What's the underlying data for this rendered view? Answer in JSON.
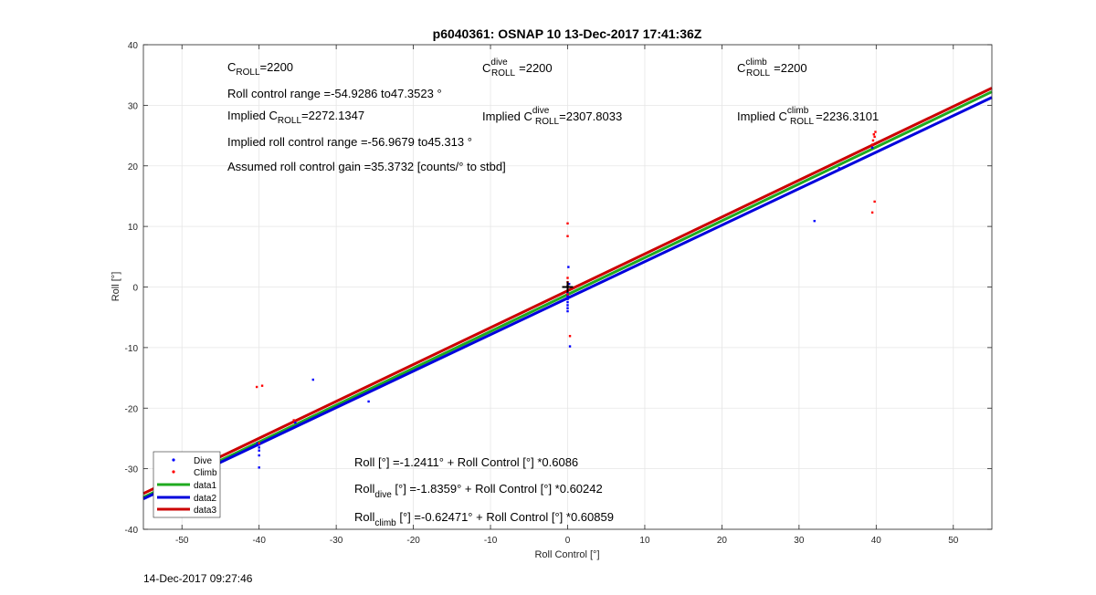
{
  "chart_data": {
    "type": "scatter",
    "title": "p6040361: OSNAP 10 13-Dec-2017 17:41:36Z",
    "xlabel": "Roll Control [°]",
    "ylabel": "Roll [°]",
    "xlim": [
      -55,
      55
    ],
    "ylim": [
      -40,
      40
    ],
    "xticks": [
      -50,
      -40,
      -30,
      -20,
      -10,
      0,
      10,
      20,
      30,
      40,
      50
    ],
    "yticks": [
      -40,
      -30,
      -20,
      -10,
      0,
      10,
      20,
      30,
      40
    ],
    "grid": true,
    "legend_position": "bottom-left",
    "legend": [
      "Dive",
      "Climb",
      "data1",
      "data2",
      "data3"
    ],
    "series": [
      {
        "name": "Dive",
        "kind": "points",
        "color": "#0000ff",
        "points": [
          [
            -51.5,
            -28.6
          ],
          [
            -40,
            -26
          ],
          [
            -40,
            -26.5
          ],
          [
            -40,
            -27
          ],
          [
            -40,
            -27.8
          ],
          [
            -40,
            -29.8
          ],
          [
            -40.2,
            -25.8
          ],
          [
            -35.3,
            -22.4
          ],
          [
            -33,
            -15.3
          ],
          [
            -25.8,
            -18.9
          ],
          [
            0,
            -1
          ],
          [
            0,
            -1.5
          ],
          [
            0,
            -2
          ],
          [
            0,
            -2.5
          ],
          [
            0,
            -3
          ],
          [
            0,
            -3.5
          ],
          [
            0,
            -4
          ],
          [
            0.1,
            3.3
          ],
          [
            0.2,
            0.5
          ],
          [
            0.3,
            -9.8
          ],
          [
            32,
            10.9
          ],
          [
            35.2,
            19.6
          ],
          [
            39.5,
            23
          ]
        ]
      },
      {
        "name": "Climb",
        "kind": "points",
        "color": "#ff0000",
        "points": [
          [
            -51.7,
            -30.6
          ],
          [
            -40.3,
            -16.5
          ],
          [
            -39.6,
            -16.3
          ],
          [
            -40,
            -25.8
          ],
          [
            -35.5,
            -22
          ],
          [
            0,
            10.5
          ],
          [
            0,
            8.4
          ],
          [
            0,
            1.5
          ],
          [
            0,
            0.8
          ],
          [
            0,
            0.2
          ],
          [
            0,
            -0.6
          ],
          [
            0,
            -1.2
          ],
          [
            0.3,
            -8.1
          ],
          [
            39.5,
            12.3
          ],
          [
            39.8,
            14.1
          ],
          [
            39.5,
            23.5
          ],
          [
            39.6,
            24.2
          ],
          [
            39.8,
            24.8
          ],
          [
            39.7,
            25.2
          ],
          [
            39.9,
            25.6
          ]
        ]
      },
      {
        "name": "data1",
        "kind": "line",
        "color": "#1faa1f",
        "x": [
          -55,
          55
        ],
        "y": [
          -34.715,
          32.231
        ]
      },
      {
        "name": "data2",
        "kind": "line",
        "color": "#0000dd",
        "x": [
          -55,
          55
        ],
        "y": [
          -34.969,
          31.298
        ]
      },
      {
        "name": "data3",
        "kind": "line",
        "color": "#cc0000",
        "x": [
          -55,
          55
        ],
        "y": [
          -34.097,
          32.848
        ]
      }
    ],
    "marker": {
      "kind": "plus",
      "x": 0,
      "y": 0,
      "color": "#000000"
    },
    "annotations": {
      "c_roll": {
        "base": "C",
        "sub": "ROLL",
        "sup": "",
        "value": "=2200"
      },
      "c_roll_dive": {
        "base": "C",
        "sub": "ROLL",
        "sup": "dive",
        "value": "=2200"
      },
      "c_roll_climb": {
        "base": "C",
        "sub": "ROLL",
        "sup": "climb",
        "value": "=2200"
      },
      "roll_range": "Roll control range =-54.9286 to47.3523 °",
      "implied_c_roll": {
        "prefix": "Implied C",
        "sub": "ROLL",
        "sup": "",
        "value": "=2272.1347"
      },
      "implied_c_roll_dive": {
        "prefix": "Implied C",
        "sub": "ROLL",
        "sup": "dive",
        "value": "=2307.8033"
      },
      "implied_c_roll_climb": {
        "prefix": "Implied C",
        "sub": "ROLL",
        "sup": "climb",
        "value": "=2236.3101"
      },
      "implied_range": "Implied roll control range =-56.9679 to45.313 °",
      "assumed_gain": "Assumed roll control gain =35.3732 [counts/° to stbd]",
      "fit_all": {
        "prefix": "Roll [°] =-1.2411° + Roll Control [°] *0.6086"
      },
      "fit_dive": {
        "prefix": "Roll",
        "sub": "dive",
        "rest": " [°] =-1.8359° + Roll Control [°] *0.60242"
      },
      "fit_climb": {
        "prefix": "Roll",
        "sub": "climb",
        "rest": " [°] =-0.62471° + Roll Control [°] *0.60859"
      }
    }
  },
  "footer": {
    "timestamp": "14-Dec-2017 09:27:46"
  }
}
